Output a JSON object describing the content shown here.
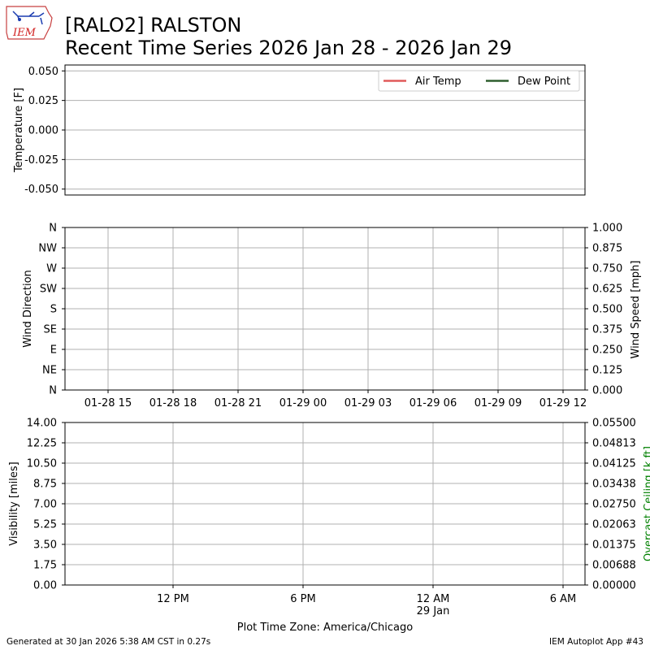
{
  "header": {
    "line1": "[RALO2] RALSTON",
    "line2": "Recent Time Series 2026 Jan 28 - 2026 Jan 29",
    "logo_text": "IEM"
  },
  "footer": {
    "left": "Generated at 30 Jan 2026 5:38 AM CST in 0.27s",
    "right": "IEM Autoplot App #43"
  },
  "colors": {
    "air_temp": "#e05a5a",
    "dew_point": "#2e5e2e",
    "grid": "#b0b0b0",
    "ceiling_label": "#008000",
    "logo": "#d11f1f"
  },
  "chart_data": [
    {
      "type": "line",
      "ylabel": "Temperature [F]",
      "ylim": [
        -0.055,
        0.055
      ],
      "yticks": [
        "0.050",
        "0.025",
        "0.000",
        "-0.025",
        "-0.050"
      ],
      "ytick_values": [
        0.05,
        0.025,
        0.0,
        -0.025,
        -0.05
      ],
      "grid": "horizontal",
      "legend": "top-right",
      "series": [
        {
          "name": "Air Temp",
          "color": "#e05a5a",
          "values": []
        },
        {
          "name": "Dew Point",
          "color": "#2e5e2e",
          "values": []
        }
      ]
    },
    {
      "type": "scatter",
      "ylabel": "Wind Direction",
      "y2label": "Wind Speed [mph]",
      "yticks": [
        "N",
        "NW",
        "W",
        "SW",
        "S",
        "SE",
        "E",
        "NE",
        "N"
      ],
      "ytick_values": [
        360,
        315,
        270,
        225,
        180,
        135,
        90,
        45,
        0
      ],
      "ylim": [
        0,
        360
      ],
      "y2ticks": [
        "1.000",
        "0.875",
        "0.750",
        "0.625",
        "0.500",
        "0.375",
        "0.250",
        "0.125",
        "0.000"
      ],
      "y2lim": [
        0,
        1
      ],
      "xticks": [
        "01-28 15",
        "01-28 18",
        "01-28 21",
        "01-29 00",
        "01-29 03",
        "01-29 06",
        "01-29 09",
        "01-29 12"
      ],
      "grid": "both",
      "series": []
    },
    {
      "type": "line",
      "ylabel": "Visibility [miles]",
      "y2label": "Overcast Ceiling [k ft]",
      "yticks": [
        "14.00",
        "12.25",
        "10.50",
        "8.75",
        "7.00",
        "5.25",
        "3.50",
        "1.75",
        "0.00"
      ],
      "ylim": [
        0,
        14
      ],
      "y2ticks": [
        "0.05500",
        "0.04813",
        "0.04125",
        "0.03438",
        "0.02750",
        "0.02063",
        "0.01375",
        "0.00688",
        "0.00000"
      ],
      "y2lim": [
        0,
        0.055
      ],
      "xticks": [
        "12 PM",
        "6 PM",
        "12 AM",
        "6 AM"
      ],
      "xtick_sub": [
        "",
        "",
        "29 Jan",
        ""
      ],
      "xlabel": "Plot Time Zone: America/Chicago",
      "grid": "both",
      "series": []
    }
  ]
}
